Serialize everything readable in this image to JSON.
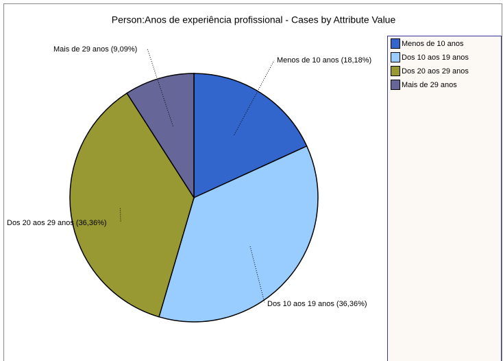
{
  "chart_data": {
    "type": "pie",
    "title": "Person:Anos de experiência profissional - Cases by Attribute Value",
    "categories": [
      "Menos de 10 anos",
      "Dos 10 aos 19 anos",
      "Dos 20 aos 29 anos",
      "Mais de 29 anos"
    ],
    "values": [
      18.18,
      36.36,
      36.36,
      9.09
    ],
    "value_labels": [
      "Menos de 10 anos (18,18%)",
      "Dos 10 aos 19 anos (36,36%)",
      "Dos 20 aos 29 anos (36,36%)",
      "Mais de 29 anos (9,09%)"
    ],
    "colors": [
      "#3366cc",
      "#99ccff",
      "#999933",
      "#666699"
    ],
    "legend": "right"
  }
}
